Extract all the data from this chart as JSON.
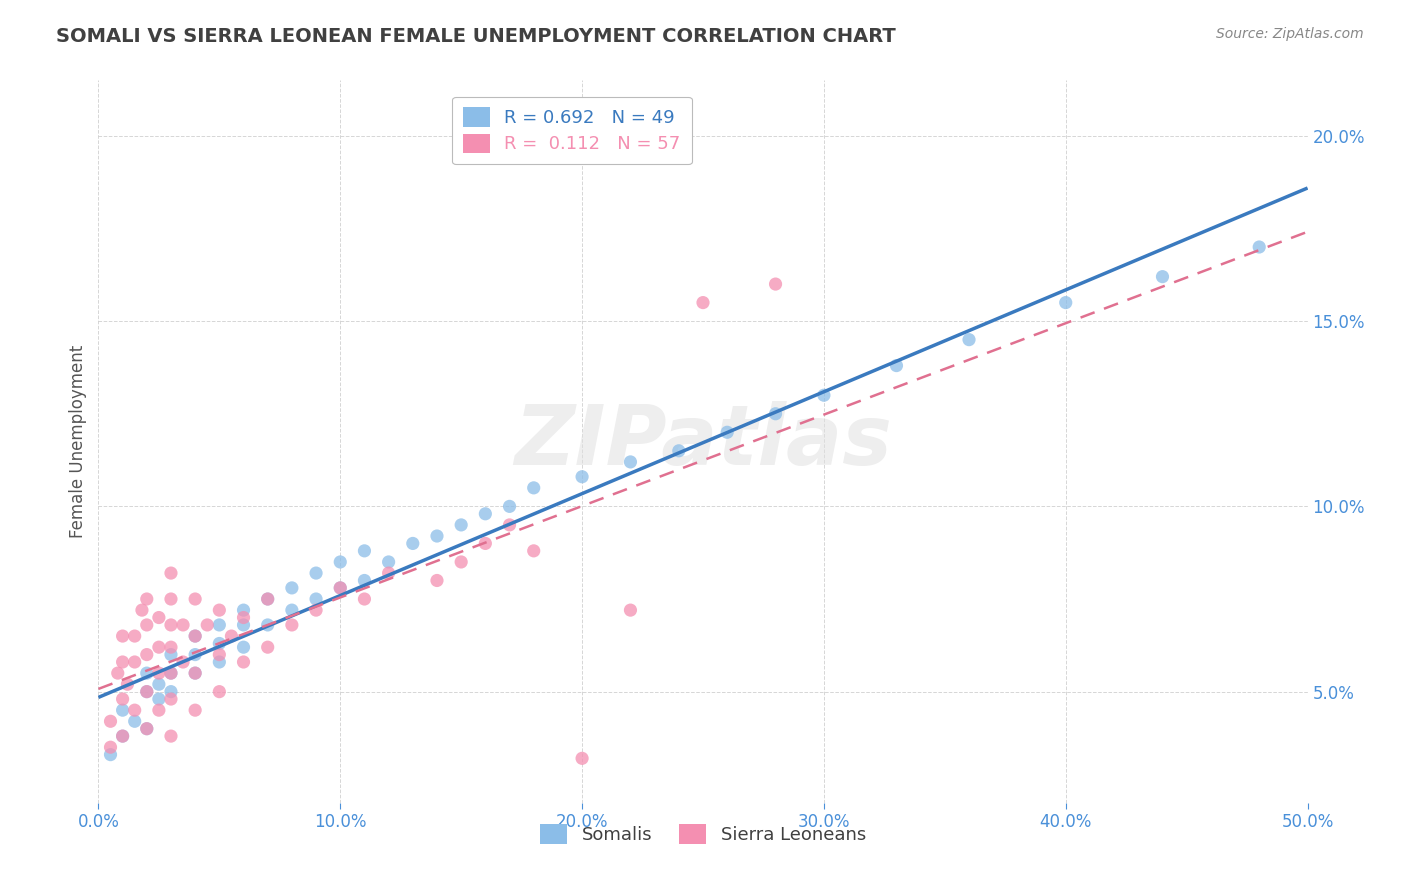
{
  "title": "SOMALI VS SIERRA LEONEAN FEMALE UNEMPLOYMENT CORRELATION CHART",
  "source": "Source: ZipAtlas.com",
  "ylabel": "Female Unemployment",
  "xlim": [
    0.0,
    0.5
  ],
  "ylim": [
    0.02,
    0.215
  ],
  "yticks": [
    0.05,
    0.1,
    0.15,
    0.2
  ],
  "ytick_labels": [
    "5.0%",
    "10.0%",
    "15.0%",
    "20.0%"
  ],
  "xticks": [
    0.0,
    0.1,
    0.2,
    0.3,
    0.4,
    0.5
  ],
  "xtick_labels": [
    "0.0%",
    "10.0%",
    "20.0%",
    "30.0%",
    "40.0%",
    "50.0%"
  ],
  "somali_R": 0.692,
  "somali_N": 49,
  "sierra_R": 0.112,
  "sierra_N": 57,
  "somali_color": "#8bbde8",
  "sierra_color": "#f48fb1",
  "somali_line_color": "#3a7abf",
  "sierra_line_color": "#e07090",
  "watermark": "ZIPatlas",
  "legend_somali": "Somalis",
  "legend_sierra": "Sierra Leoneans",
  "somali_x": [
    0.005,
    0.01,
    0.01,
    0.015,
    0.02,
    0.02,
    0.02,
    0.025,
    0.025,
    0.03,
    0.03,
    0.03,
    0.04,
    0.04,
    0.04,
    0.05,
    0.05,
    0.05,
    0.06,
    0.06,
    0.06,
    0.07,
    0.07,
    0.08,
    0.08,
    0.09,
    0.09,
    0.1,
    0.1,
    0.11,
    0.11,
    0.12,
    0.13,
    0.14,
    0.15,
    0.16,
    0.17,
    0.18,
    0.2,
    0.22,
    0.24,
    0.26,
    0.28,
    0.3,
    0.33,
    0.36,
    0.4,
    0.44,
    0.48
  ],
  "somali_y": [
    0.033,
    0.038,
    0.045,
    0.042,
    0.04,
    0.05,
    0.055,
    0.048,
    0.052,
    0.05,
    0.055,
    0.06,
    0.055,
    0.06,
    0.065,
    0.058,
    0.063,
    0.068,
    0.062,
    0.068,
    0.072,
    0.068,
    0.075,
    0.072,
    0.078,
    0.075,
    0.082,
    0.078,
    0.085,
    0.08,
    0.088,
    0.085,
    0.09,
    0.092,
    0.095,
    0.098,
    0.1,
    0.105,
    0.108,
    0.112,
    0.115,
    0.12,
    0.125,
    0.13,
    0.138,
    0.145,
    0.155,
    0.162,
    0.17
  ],
  "sierra_x": [
    0.005,
    0.005,
    0.008,
    0.01,
    0.01,
    0.01,
    0.01,
    0.012,
    0.015,
    0.015,
    0.015,
    0.018,
    0.02,
    0.02,
    0.02,
    0.02,
    0.02,
    0.025,
    0.025,
    0.025,
    0.025,
    0.03,
    0.03,
    0.03,
    0.03,
    0.03,
    0.03,
    0.03,
    0.035,
    0.035,
    0.04,
    0.04,
    0.04,
    0.04,
    0.045,
    0.05,
    0.05,
    0.05,
    0.055,
    0.06,
    0.06,
    0.07,
    0.07,
    0.08,
    0.09,
    0.1,
    0.11,
    0.12,
    0.14,
    0.15,
    0.16,
    0.17,
    0.18,
    0.2,
    0.22,
    0.25,
    0.28
  ],
  "sierra_y": [
    0.035,
    0.042,
    0.055,
    0.038,
    0.048,
    0.058,
    0.065,
    0.052,
    0.045,
    0.058,
    0.065,
    0.072,
    0.04,
    0.05,
    0.06,
    0.068,
    0.075,
    0.045,
    0.055,
    0.062,
    0.07,
    0.038,
    0.048,
    0.055,
    0.062,
    0.068,
    0.075,
    0.082,
    0.058,
    0.068,
    0.045,
    0.055,
    0.065,
    0.075,
    0.068,
    0.05,
    0.06,
    0.072,
    0.065,
    0.058,
    0.07,
    0.062,
    0.075,
    0.068,
    0.072,
    0.078,
    0.075,
    0.082,
    0.08,
    0.085,
    0.09,
    0.095,
    0.088,
    0.032,
    0.072,
    0.155,
    0.16
  ],
  "background_color": "#ffffff",
  "grid_color": "#cccccc",
  "title_color": "#404040",
  "axis_label_color": "#555555",
  "tick_label_color": "#4a90d9"
}
